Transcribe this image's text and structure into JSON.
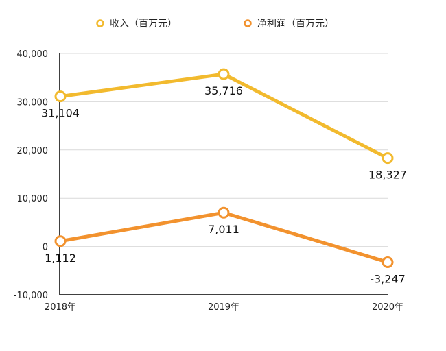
{
  "chart_data": {
    "type": "line",
    "categories": [
      "2018年",
      "2019年",
      "2020年"
    ],
    "series": [
      {
        "name": "收入（百万元）",
        "values": [
          31104,
          35716,
          18327
        ],
        "labels": [
          "31,104",
          "35,716",
          "18,327"
        ],
        "color": "#F2BA2E"
      },
      {
        "name": "净利润（百万元）",
        "values": [
          1112,
          7011,
          -3247
        ],
        "labels": [
          "1,112",
          "7,011",
          "-3,247"
        ],
        "color": "#F2922E"
      }
    ],
    "yticks": [
      "-10,000",
      "0",
      "10,000",
      "20,000",
      "30,000",
      "40,000"
    ],
    "ytick_values": [
      -10000,
      0,
      10000,
      20000,
      30000,
      40000
    ],
    "ylim": [
      -10000,
      40000
    ],
    "grid": true,
    "legend_position": "top"
  }
}
